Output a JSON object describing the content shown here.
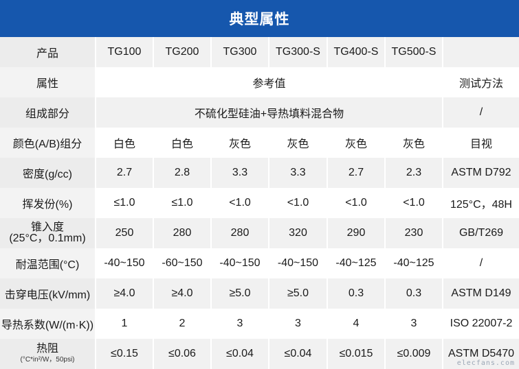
{
  "title": "典型属性",
  "header_row": {
    "label": "产品",
    "products": [
      "TG100",
      "TG200",
      "TG300",
      "TG300-S",
      "TG400-S",
      "TG500-S"
    ]
  },
  "property_row": {
    "label": "属性",
    "reference": "参考值",
    "method": "测试方法"
  },
  "composition_row": {
    "label": "组成部分",
    "value": "不硫化型硅油+导热填料混合物",
    "method": "/"
  },
  "rows": [
    {
      "label": "颜色(A/B)组分",
      "values": [
        "白色",
        "白色",
        "灰色",
        "灰色",
        "灰色",
        "灰色"
      ],
      "method": "目视"
    },
    {
      "label": "密度(g/cc)",
      "values": [
        "2.7",
        "2.8",
        "3.3",
        "3.3",
        "2.7",
        "2.3"
      ],
      "method": "ASTM D792"
    },
    {
      "label": "挥发份(%)",
      "values": [
        "≤1.0",
        "≤1.0",
        "<1.0",
        "<1.0",
        "<1.0",
        "<1.0"
      ],
      "method": "125°C，48H"
    },
    {
      "label": "锥入度",
      "sublabel": "(25°C，0.1mm)",
      "values": [
        "250",
        "280",
        "280",
        "320",
        "290",
        "230"
      ],
      "method": "GB/T269"
    },
    {
      "label": "耐温范围(°C)",
      "values": [
        "-40~150",
        "-60~150",
        "-40~150",
        "-40~150",
        "-40~125",
        "-40~125"
      ],
      "method": "/"
    },
    {
      "label": "击穿电压(kV/mm)",
      "values": [
        "≥4.0",
        "≥4.0",
        "≥5.0",
        "≥5.0",
        "0.3",
        "0.3"
      ],
      "method": "ASTM D149"
    },
    {
      "label": "导热系数(W/(m·K))",
      "values": [
        "1",
        "2",
        "3",
        "3",
        "4",
        "3"
      ],
      "method": "ISO 22007-2"
    },
    {
      "label": "热阻",
      "sublabel": "(°C*in²/W，50psi)",
      "values": [
        "≤0.15",
        "≤0.06",
        "≤0.04",
        "≤0.04",
        "≤0.015",
        "≤0.009"
      ],
      "method": "ASTM D5470"
    }
  ],
  "watermark": "elecfans.com"
}
